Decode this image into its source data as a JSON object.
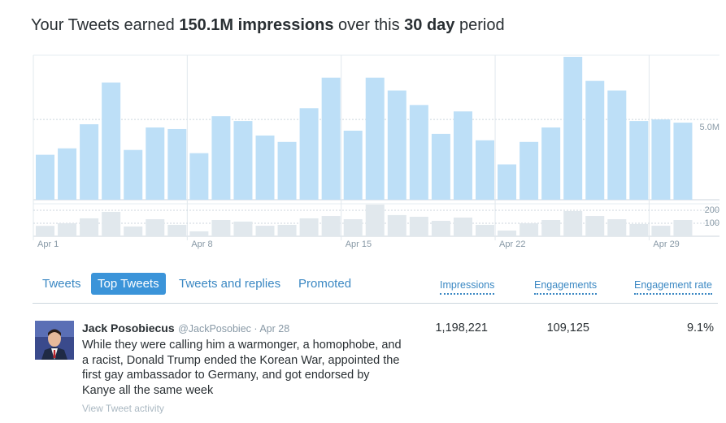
{
  "header": {
    "title_parts": [
      "Your Tweets earned ",
      "150.1M impressions",
      " over this ",
      "30 day",
      " period"
    ]
  },
  "chart_data": [
    {
      "type": "bar",
      "categories": [
        "Apr 1",
        null,
        null,
        null,
        null,
        null,
        null,
        "Apr 8",
        null,
        null,
        null,
        null,
        null,
        null,
        "Apr 15",
        null,
        null,
        null,
        null,
        null,
        null,
        "Apr 22",
        null,
        null,
        null,
        null,
        null,
        null,
        "Apr 29",
        null
      ],
      "values": [
        2.8,
        3.2,
        4.7,
        7.3,
        3.1,
        4.5,
        4.4,
        2.9,
        5.2,
        4.9,
        4.0,
        3.6,
        5.7,
        7.6,
        4.3,
        7.6,
        6.8,
        5.9,
        4.1,
        5.5,
        3.7,
        2.2,
        3.6,
        4.5,
        8.9,
        7.4,
        6.8,
        4.9,
        5.0,
        4.8
      ],
      "color": "#bddff7",
      "ylim": [
        0,
        9
      ],
      "yticks": [
        {
          "value": 5,
          "label": "5.0M"
        }
      ],
      "grid": true
    },
    {
      "type": "bar",
      "values": [
        80,
        100,
        138,
        188,
        75,
        131,
        88,
        38,
        125,
        113,
        81,
        88,
        138,
        156,
        131,
        244,
        163,
        150,
        119,
        144,
        88,
        44,
        100,
        125,
        194,
        156,
        131,
        94,
        81,
        125
      ],
      "color": "#e1e8ed",
      "ylim": [
        0,
        250
      ],
      "yticks": [
        100,
        200
      ],
      "grid": true
    }
  ],
  "tabs": {
    "items": [
      "Tweets",
      "Top Tweets",
      "Tweets and replies",
      "Promoted"
    ],
    "active": 1
  },
  "columns": [
    "Impressions",
    "Engagements",
    "Engagement rate"
  ],
  "tweet": {
    "name": "Jack Posobiecus",
    "handle": "@JackPosobiec",
    "date": "Apr 28",
    "text": "While they were calling him a warmonger, a homophobe, and a racist, Donald Trump ended the Korean War, appointed the first gay ambassador to Germany, and got endorsed by Kanye all the same week",
    "impressions": "1,198,221",
    "engagements": "109,125",
    "engagement_rate": "9.1%",
    "activity_link": "View Tweet activity"
  }
}
